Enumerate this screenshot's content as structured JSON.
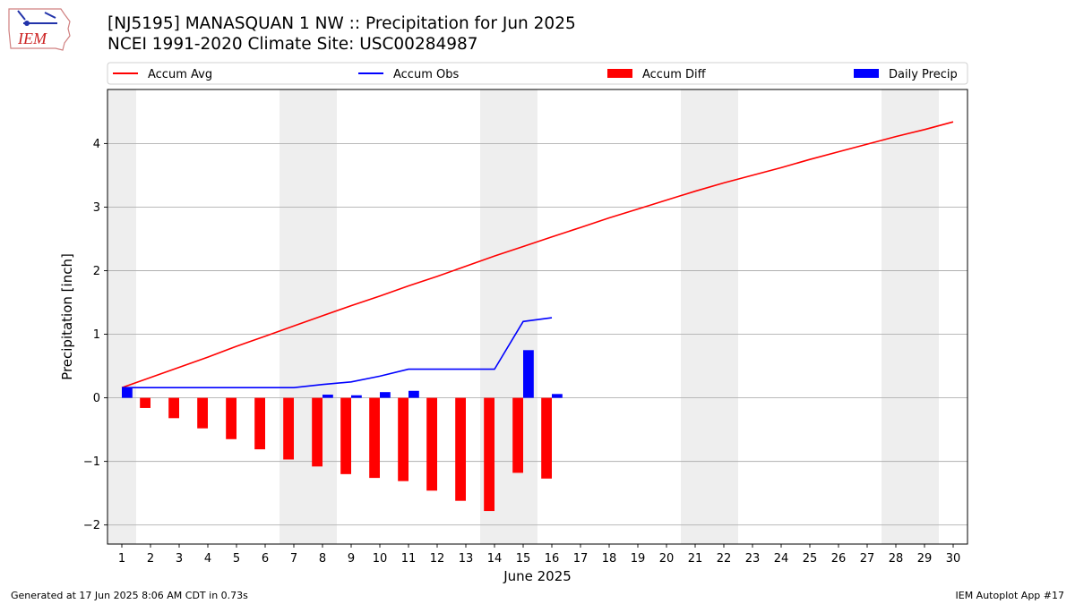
{
  "header": {
    "title_line1": "[NJ5195] MANASQUAN 1 NW :: Precipitation for Jun 2025",
    "title_line2": "NCEI 1991-2020 Climate Site: USC00284987",
    "logo_text": "IEM"
  },
  "footer": {
    "left": "Generated at 17 Jun 2025 8:06 AM CDT in 0.73s",
    "right": "IEM Autoplot App #17"
  },
  "colors": {
    "accum_avg": "#ff0000",
    "accum_obs": "#0000ff",
    "accum_diff": "#ff0000",
    "daily_precip": "#0000ff",
    "weekend_shade": "#eeeeee",
    "grid": "#b0b0b0"
  },
  "chart_data": {
    "type": "bar",
    "xlabel": "June 2025",
    "ylabel": "Precipitation [inch]",
    "xlim": [
      0.5,
      30.5
    ],
    "ylim": [
      -2.3,
      4.85
    ],
    "x_ticks": [
      1,
      2,
      3,
      4,
      5,
      6,
      7,
      8,
      9,
      10,
      11,
      12,
      13,
      14,
      15,
      16,
      17,
      18,
      19,
      20,
      21,
      22,
      23,
      24,
      25,
      26,
      27,
      28,
      29,
      30
    ],
    "y_ticks": [
      -2,
      -1,
      0,
      1,
      2,
      3,
      4
    ],
    "y_tick_labels": [
      "−2",
      "−1",
      "0",
      "1",
      "2",
      "3",
      "4"
    ],
    "grid": "horizontal",
    "legend_position": "top",
    "weekend_shading": [
      [
        0.5,
        1.5
      ],
      [
        6.5,
        8.5
      ],
      [
        13.5,
        15.5
      ],
      [
        20.5,
        22.5
      ],
      [
        27.5,
        29.5
      ]
    ],
    "series": [
      {
        "name": "Accum Avg",
        "kind": "line",
        "x": [
          1,
          2,
          3,
          4,
          5,
          6,
          7,
          8,
          9,
          10,
          11,
          12,
          13,
          14,
          15,
          16,
          17,
          18,
          19,
          20,
          21,
          22,
          23,
          24,
          25,
          26,
          27,
          28,
          29,
          30
        ],
        "values": [
          0.16,
          0.32,
          0.48,
          0.64,
          0.81,
          0.97,
          1.13,
          1.29,
          1.45,
          1.6,
          1.76,
          1.91,
          2.07,
          2.23,
          2.38,
          2.53,
          2.68,
          2.83,
          2.97,
          3.11,
          3.25,
          3.38,
          3.5,
          3.62,
          3.75,
          3.87,
          3.99,
          4.11,
          4.22,
          4.34
        ]
      },
      {
        "name": "Accum Obs",
        "kind": "line",
        "x": [
          1,
          2,
          3,
          4,
          5,
          6,
          7,
          8,
          9,
          10,
          11,
          12,
          13,
          14,
          15,
          16
        ],
        "values": [
          0.16,
          0.16,
          0.16,
          0.16,
          0.16,
          0.16,
          0.16,
          0.21,
          0.25,
          0.34,
          0.45,
          0.45,
          0.45,
          0.45,
          1.2,
          1.26
        ]
      },
      {
        "name": "Accum Diff",
        "kind": "bar",
        "x": [
          1,
          2,
          3,
          4,
          5,
          6,
          7,
          8,
          9,
          10,
          11,
          12,
          13,
          14,
          15,
          16
        ],
        "values": [
          0.0,
          -0.16,
          -0.32,
          -0.48,
          -0.65,
          -0.81,
          -0.97,
          -1.08,
          -1.2,
          -1.26,
          -1.31,
          -1.46,
          -1.62,
          -1.78,
          -1.18,
          -1.27
        ]
      },
      {
        "name": "Daily Precip",
        "kind": "bar",
        "x": [
          1,
          2,
          3,
          4,
          5,
          6,
          7,
          8,
          9,
          10,
          11,
          12,
          13,
          14,
          15,
          16
        ],
        "values": [
          0.16,
          0,
          0,
          0,
          0,
          0,
          0,
          0.05,
          0.04,
          0.09,
          0.11,
          0,
          0,
          0,
          0.75,
          0.06
        ]
      }
    ]
  }
}
